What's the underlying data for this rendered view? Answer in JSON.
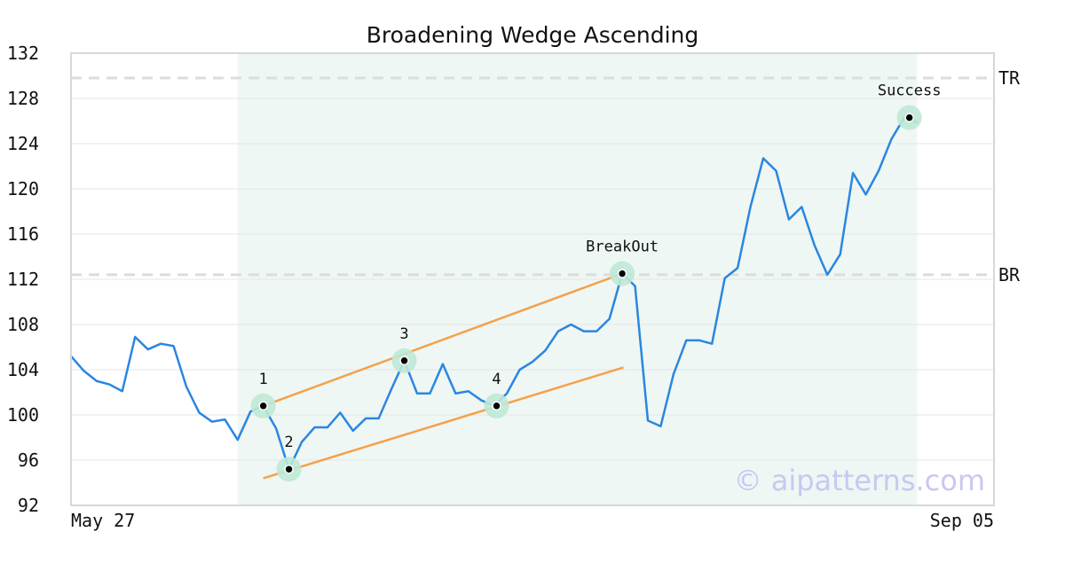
{
  "colors": {
    "price_line": "#2b86e0",
    "wedge_lines": "#f5a04a",
    "highlight_band": "#eef7f3",
    "marker_halo": "#bfe8d6",
    "gridline": "#e6e6e6",
    "level_dash": "#dcdcdc",
    "axis_frame": "#d8d8d8"
  },
  "watermark": "© aipatterns.com",
  "chart_data": {
    "type": "line",
    "title": "Broadening Wedge Ascending",
    "xlabel": "",
    "ylabel": "",
    "x_tick_labels": [
      "May 27",
      "Sep 05"
    ],
    "x_range": [
      0,
      72
    ],
    "ylim": [
      92,
      132
    ],
    "y_ticks": [
      92,
      96,
      100,
      104,
      108,
      112,
      116,
      120,
      124,
      128,
      132
    ],
    "grid": "horizontal",
    "series": [
      {
        "values": [
          105.2,
          103.9,
          103.0,
          102.7,
          102.1,
          106.9,
          105.8,
          106.3,
          106.1,
          102.5,
          100.2,
          99.4,
          99.6,
          97.8,
          100.3,
          100.8,
          98.8,
          95.2,
          97.6,
          98.9,
          98.9,
          100.2,
          98.6,
          99.7,
          99.7,
          102.3,
          104.8,
          101.9,
          101.9,
          104.5,
          101.9,
          102.1,
          101.3,
          100.8,
          101.9,
          104.0,
          104.7,
          105.7,
          107.4,
          108.0,
          107.4,
          107.4,
          108.5,
          112.5,
          111.4,
          99.5,
          99.0,
          103.6,
          106.6,
          106.6,
          106.3,
          112.1,
          113.0,
          118.4,
          122.7,
          121.6,
          117.3,
          118.4,
          115.0,
          112.4,
          114.2,
          121.4,
          119.5,
          121.6,
          124.4,
          126.3,
          125.9
        ]
      }
    ],
    "highlight_range_x": [
      13,
      66
    ],
    "horizontal_levels": [
      {
        "label": "TR",
        "y": 129.8
      },
      {
        "label": "BR",
        "y": 112.4
      }
    ],
    "trend_lines": [
      {
        "from": [
          15,
          100.8
        ],
        "to": [
          43,
          112.5
        ]
      },
      {
        "from": [
          15,
          94.4
        ],
        "to": [
          43.1,
          104.2
        ]
      }
    ],
    "annotations": [
      {
        "label": "1",
        "x": 15,
        "y": 100.8
      },
      {
        "label": "2",
        "x": 17,
        "y": 95.2
      },
      {
        "label": "3",
        "x": 26,
        "y": 104.8
      },
      {
        "label": "4",
        "x": 33.2,
        "y": 100.8
      },
      {
        "label": "BreakOut",
        "x": 43,
        "y": 112.5
      },
      {
        "label": "Success",
        "x": 65.4,
        "y": 126.3
      }
    ]
  }
}
